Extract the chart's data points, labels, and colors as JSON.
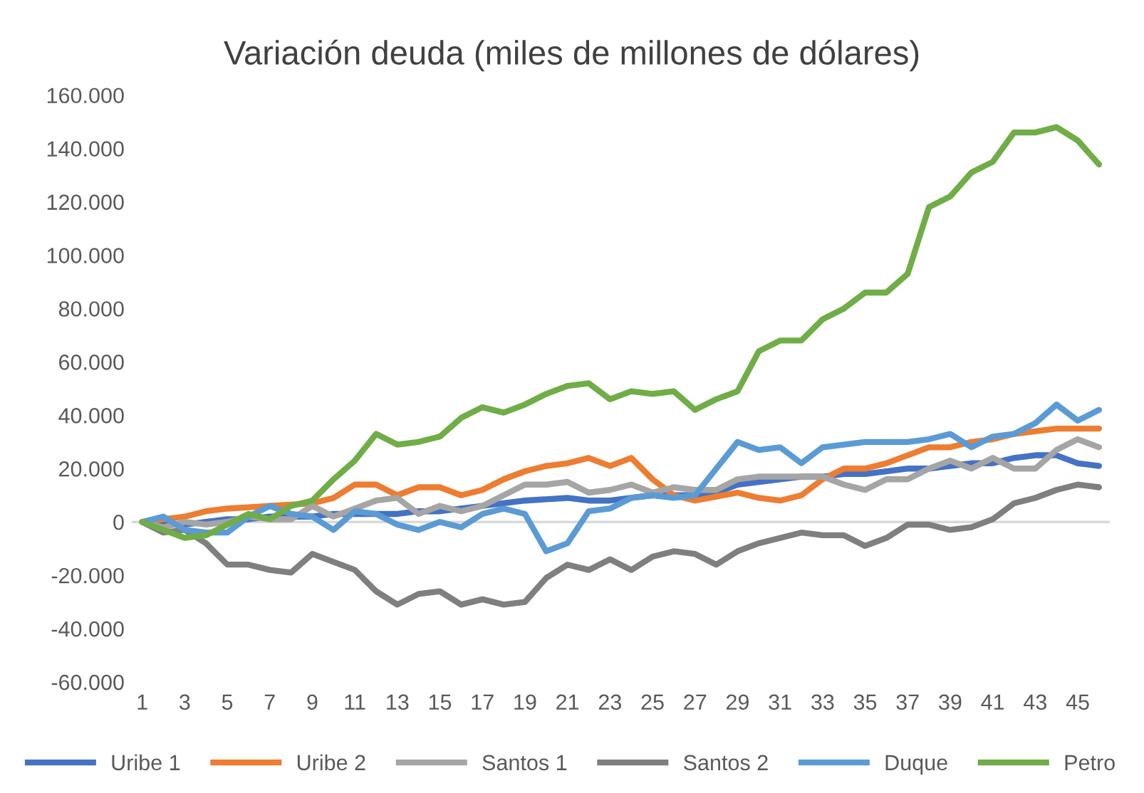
{
  "chart_data": {
    "type": "line",
    "title": "Variación deuda (miles de millones de dólares)",
    "categories": [
      "1",
      null,
      "3",
      null,
      "5",
      null,
      "7",
      null,
      "9",
      null,
      "11",
      null,
      "13",
      null,
      "15",
      null,
      "17",
      null,
      "19",
      null,
      "21",
      null,
      "23",
      null,
      "25",
      null,
      "27",
      null,
      "29",
      null,
      "31",
      null,
      "33",
      null,
      "35",
      null,
      "37",
      null,
      "39",
      null,
      "41",
      null,
      "43",
      null,
      "45",
      null
    ],
    "series": [
      {
        "name": "Uribe 1",
        "color": "#4472c4",
        "values": [
          0,
          -1000,
          -1000,
          0,
          1000,
          1000,
          2000,
          2000,
          2000,
          3000,
          3000,
          3000,
          3000,
          4000,
          4000,
          5000,
          6000,
          7000,
          8000,
          8500,
          9000,
          8000,
          8000,
          9000,
          10000,
          10000,
          10000,
          11000,
          14000,
          15000,
          16000,
          17000,
          17000,
          18000,
          18000,
          19000,
          20000,
          20000,
          21000,
          22000,
          22000,
          24000,
          25000,
          25000,
          22000,
          21000
        ]
      },
      {
        "name": "Uribe 2",
        "color": "#ed7d31",
        "values": [
          0,
          1000,
          2000,
          4000,
          5000,
          5500,
          6000,
          6500,
          7000,
          9000,
          14000,
          14000,
          10000,
          13000,
          13000,
          10000,
          12000,
          16000,
          19000,
          21000,
          22000,
          24000,
          21000,
          24000,
          16000,
          10000,
          8000,
          9500,
          11000,
          9000,
          8000,
          10000,
          16000,
          20000,
          20000,
          22000,
          25000,
          28000,
          28000,
          30000,
          31000,
          33000,
          34000,
          35000,
          35000,
          35000
        ]
      },
      {
        "name": "Santos 1",
        "color": "#a5a5a5",
        "values": [
          0,
          -2000,
          0,
          -1000,
          0,
          2000,
          1000,
          1000,
          6000,
          2000,
          5000,
          8000,
          9000,
          3000,
          6000,
          4000,
          6000,
          10000,
          14000,
          14000,
          15000,
          11000,
          12000,
          14000,
          11000,
          13000,
          12000,
          12000,
          16000,
          17000,
          17000,
          17000,
          17000,
          14000,
          12000,
          16000,
          16000,
          20000,
          23000,
          20000,
          24000,
          20000,
          20000,
          27000,
          31000,
          28000
        ]
      },
      {
        "name": "Santos 2",
        "color": "#7f7f7f",
        "values": [
          0,
          -4000,
          -3000,
          -8000,
          -16000,
          -16000,
          -18000,
          -19000,
          -12000,
          -15000,
          -18000,
          -26000,
          -31000,
          -27000,
          -26000,
          -31000,
          -29000,
          -31000,
          -30000,
          -21000,
          -16000,
          -18000,
          -14000,
          -18000,
          -13000,
          -11000,
          -12000,
          -16000,
          -11000,
          -8000,
          -6000,
          -4000,
          -5000,
          -5000,
          -9000,
          -6000,
          -1000,
          -1000,
          -3000,
          -2000,
          1000,
          7000,
          9000,
          12000,
          14000,
          13000
        ]
      },
      {
        "name": "Duque",
        "color": "#5b9bd5",
        "values": [
          0,
          2000,
          -3000,
          -4000,
          -4000,
          2000,
          6000,
          3000,
          2000,
          -3000,
          4000,
          3000,
          -1000,
          -3000,
          0,
          -2000,
          3000,
          5000,
          3000,
          -11000,
          -8000,
          4000,
          5000,
          9000,
          10000,
          9000,
          10000,
          20000,
          30000,
          27000,
          28000,
          22000,
          28000,
          29000,
          30000,
          30000,
          30000,
          31000,
          33000,
          28000,
          32000,
          33000,
          37000,
          44000,
          38000,
          42000
        ]
      },
      {
        "name": "Petro",
        "color": "#70ad47",
        "values": [
          0,
          -3000,
          -6000,
          -5000,
          -1000,
          3000,
          1000,
          6000,
          8000,
          16000,
          23000,
          33000,
          29000,
          30000,
          32000,
          39000,
          43000,
          41000,
          44000,
          48000,
          51000,
          52000,
          46000,
          49000,
          48000,
          49000,
          42000,
          46000,
          49000,
          64000,
          68000,
          68000,
          76000,
          80000,
          86000,
          86000,
          93000,
          118000,
          122000,
          131000,
          135000,
          146000,
          146000,
          148000,
          143000,
          134000
        ]
      }
    ],
    "ylim": [
      -60000,
      160000
    ],
    "yticks": [
      {
        "value": -60000,
        "label": "-60.000"
      },
      {
        "value": -40000,
        "label": "-40.000"
      },
      {
        "value": -20000,
        "label": "-20.000"
      },
      {
        "value": 0,
        "label": "0"
      },
      {
        "value": 20000,
        "label": "20.000"
      },
      {
        "value": 40000,
        "label": "40.000"
      },
      {
        "value": 60000,
        "label": "60.000"
      },
      {
        "value": 80000,
        "label": "80.000"
      },
      {
        "value": 100000,
        "label": "100.000"
      },
      {
        "value": 120000,
        "label": "120.000"
      },
      {
        "value": 140000,
        "label": "140.000"
      },
      {
        "value": 160000,
        "label": "160.000"
      }
    ],
    "ref_lines": [
      {
        "axis": "y",
        "value": 0,
        "color": "#d9d9d9"
      }
    ],
    "legend": "bottom",
    "marker": "none",
    "line_style": "solid"
  }
}
